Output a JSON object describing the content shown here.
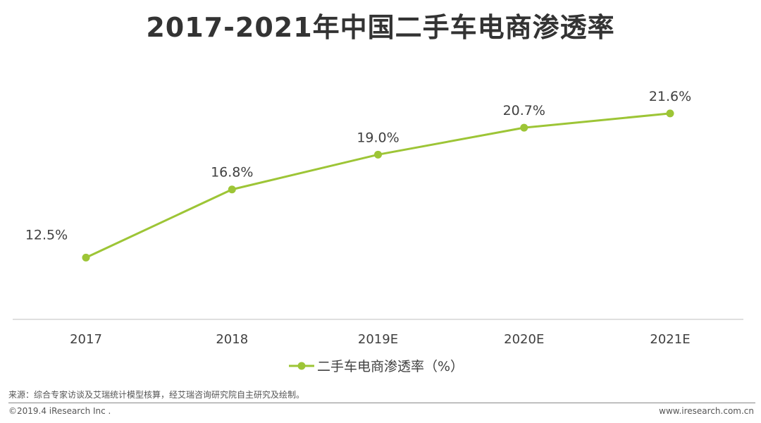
{
  "title": "2017-2021年中国二手车电商渗透率",
  "chart_data": {
    "type": "line",
    "title": "2017-2021年中国二手车电商渗透率",
    "categories": [
      "2017",
      "2018",
      "2019E",
      "2020E",
      "2021E"
    ],
    "series": [
      {
        "name": "二手车电商渗透率（%）",
        "values": [
          12.5,
          16.8,
          19.0,
          20.7,
          21.6
        ],
        "labels": [
          "12.5%",
          "16.8%",
          "19.0%",
          "20.7%",
          "21.6%"
        ]
      }
    ],
    "xlabel": "",
    "ylabel": "",
    "ylim": [
      8.6,
      25.2
    ],
    "grid": false,
    "legend": "bottom-center",
    "color": "#9DC536"
  },
  "footer": {
    "source": "来源：综合专家访谈及艾瑞统计模型核算，经艾瑞咨询研究院自主研究及绘制。",
    "copyright": "©2019.4 iResearch Inc .",
    "website": "www.iresearch.com.cn"
  }
}
